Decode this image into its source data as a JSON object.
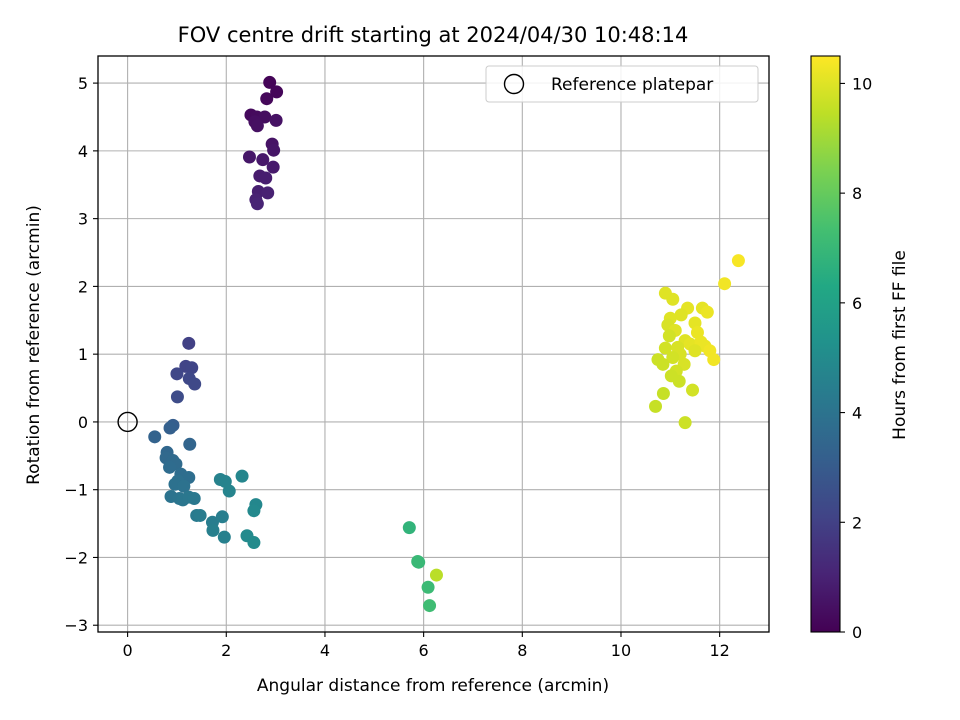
{
  "chart_data": {
    "type": "scatter",
    "title": "FOV centre drift starting at 2024/04/30 10:48:14",
    "xlabel": "Angular distance from reference (arcmin)",
    "ylabel": "Rotation from reference (arcmin)",
    "xlim": [
      -0.6,
      13.0
    ],
    "ylim": [
      -3.1,
      5.4
    ],
    "x_ticks": [
      "0",
      "2",
      "4",
      "6",
      "8",
      "10",
      "12"
    ],
    "y_ticks": [
      "−3",
      "−2",
      "−1",
      "0",
      "1",
      "2",
      "3",
      "4",
      "5"
    ],
    "grid": true,
    "legend": {
      "position": "upper-right",
      "entries": [
        "Reference platepar"
      ]
    },
    "reference_point": {
      "x": 0,
      "y": 0
    },
    "colorbar": {
      "label": "Hours from first FF file",
      "range": [
        0,
        10.5
      ],
      "ticks": [
        "0",
        "2",
        "4",
        "6",
        "8",
        "10"
      ],
      "colormap": "viridis"
    },
    "points": [
      {
        "x": 2.88,
        "y": 5.01,
        "c": 0.1
      },
      {
        "x": 3.02,
        "y": 4.87,
        "c": 0.15
      },
      {
        "x": 2.82,
        "y": 4.77,
        "c": 0.2
      },
      {
        "x": 2.5,
        "y": 4.53,
        "c": 0.25
      },
      {
        "x": 2.62,
        "y": 4.5,
        "c": 0.3
      },
      {
        "x": 2.78,
        "y": 4.5,
        "c": 0.35
      },
      {
        "x": 2.58,
        "y": 4.43,
        "c": 0.4
      },
      {
        "x": 2.63,
        "y": 4.37,
        "c": 0.45
      },
      {
        "x": 3.01,
        "y": 4.45,
        "c": 0.5
      },
      {
        "x": 2.93,
        "y": 4.1,
        "c": 0.55
      },
      {
        "x": 2.96,
        "y": 4.01,
        "c": 0.6
      },
      {
        "x": 2.47,
        "y": 3.91,
        "c": 0.65
      },
      {
        "x": 2.74,
        "y": 3.87,
        "c": 0.7
      },
      {
        "x": 2.95,
        "y": 3.76,
        "c": 0.75
      },
      {
        "x": 2.68,
        "y": 3.63,
        "c": 0.8
      },
      {
        "x": 2.8,
        "y": 3.6,
        "c": 0.85
      },
      {
        "x": 2.65,
        "y": 3.4,
        "c": 0.9
      },
      {
        "x": 2.84,
        "y": 3.38,
        "c": 0.95
      },
      {
        "x": 2.6,
        "y": 3.28,
        "c": 1.0
      },
      {
        "x": 2.63,
        "y": 3.22,
        "c": 1.05
      },
      {
        "x": 1.24,
        "y": 1.16,
        "c": 2.0
      },
      {
        "x": 1.18,
        "y": 0.82,
        "c": 2.1
      },
      {
        "x": 1.3,
        "y": 0.8,
        "c": 2.15
      },
      {
        "x": 1.0,
        "y": 0.71,
        "c": 2.2
      },
      {
        "x": 1.25,
        "y": 0.64,
        "c": 2.25
      },
      {
        "x": 1.36,
        "y": 0.56,
        "c": 2.3
      },
      {
        "x": 1.01,
        "y": 0.37,
        "c": 2.4
      },
      {
        "x": 0.92,
        "y": -0.05,
        "c": 3.1
      },
      {
        "x": 0.86,
        "y": -0.09,
        "c": 3.2
      },
      {
        "x": 0.55,
        "y": -0.22,
        "c": 3.3
      },
      {
        "x": 1.26,
        "y": -0.33,
        "c": 3.4
      },
      {
        "x": 0.8,
        "y": -0.45,
        "c": 3.5
      },
      {
        "x": 0.78,
        "y": -0.53,
        "c": 3.55
      },
      {
        "x": 0.92,
        "y": -0.57,
        "c": 3.6
      },
      {
        "x": 0.98,
        "y": -0.62,
        "c": 3.65
      },
      {
        "x": 0.85,
        "y": -0.67,
        "c": 3.7
      },
      {
        "x": 1.08,
        "y": -0.77,
        "c": 3.75
      },
      {
        "x": 1.24,
        "y": -0.82,
        "c": 3.8
      },
      {
        "x": 1.02,
        "y": -0.87,
        "c": 3.85
      },
      {
        "x": 0.96,
        "y": -0.92,
        "c": 3.9
      },
      {
        "x": 1.14,
        "y": -0.95,
        "c": 3.95
      },
      {
        "x": 0.88,
        "y": -1.1,
        "c": 4.0
      },
      {
        "x": 1.05,
        "y": -1.13,
        "c": 4.05
      },
      {
        "x": 1.12,
        "y": -1.15,
        "c": 4.1
      },
      {
        "x": 1.24,
        "y": -1.11,
        "c": 4.15
      },
      {
        "x": 1.35,
        "y": -1.13,
        "c": 4.2
      },
      {
        "x": 1.4,
        "y": -1.38,
        "c": 4.3
      },
      {
        "x": 1.47,
        "y": -1.38,
        "c": 4.35
      },
      {
        "x": 1.72,
        "y": -1.48,
        "c": 4.4
      },
      {
        "x": 1.92,
        "y": -1.4,
        "c": 4.45
      },
      {
        "x": 1.73,
        "y": -1.6,
        "c": 4.5
      },
      {
        "x": 1.96,
        "y": -1.7,
        "c": 4.55
      },
      {
        "x": 1.88,
        "y": -0.85,
        "c": 4.6
      },
      {
        "x": 1.98,
        "y": -0.88,
        "c": 4.65
      },
      {
        "x": 2.06,
        "y": -1.02,
        "c": 4.7
      },
      {
        "x": 2.32,
        "y": -0.8,
        "c": 4.8
      },
      {
        "x": 2.6,
        "y": -1.22,
        "c": 4.85
      },
      {
        "x": 2.56,
        "y": -1.31,
        "c": 4.9
      },
      {
        "x": 2.42,
        "y": -1.68,
        "c": 4.95
      },
      {
        "x": 2.56,
        "y": -1.78,
        "c": 5.0
      },
      {
        "x": 5.71,
        "y": -1.56,
        "c": 6.8
      },
      {
        "x": 5.9,
        "y": -2.07,
        "c": 7.0
      },
      {
        "x": 5.88,
        "y": -2.06,
        "c": 7.05
      },
      {
        "x": 6.09,
        "y": -2.44,
        "c": 7.1
      },
      {
        "x": 6.12,
        "y": -2.71,
        "c": 7.2
      },
      {
        "x": 6.26,
        "y": -2.26,
        "c": 9.4
      },
      {
        "x": 12.38,
        "y": 2.38,
        "c": 10.4
      },
      {
        "x": 12.1,
        "y": 2.04,
        "c": 10.3
      },
      {
        "x": 10.9,
        "y": 1.9,
        "c": 10.0
      },
      {
        "x": 11.05,
        "y": 1.81,
        "c": 10.0
      },
      {
        "x": 11.35,
        "y": 1.68,
        "c": 10.1
      },
      {
        "x": 11.65,
        "y": 1.68,
        "c": 10.1
      },
      {
        "x": 11.75,
        "y": 1.62,
        "c": 10.2
      },
      {
        "x": 11.22,
        "y": 1.58,
        "c": 10.0
      },
      {
        "x": 11.0,
        "y": 1.53,
        "c": 10.0
      },
      {
        "x": 10.95,
        "y": 1.43,
        "c": 9.9
      },
      {
        "x": 11.5,
        "y": 1.46,
        "c": 10.1
      },
      {
        "x": 11.1,
        "y": 1.35,
        "c": 10.0
      },
      {
        "x": 11.55,
        "y": 1.32,
        "c": 10.2
      },
      {
        "x": 10.98,
        "y": 1.27,
        "c": 9.8
      },
      {
        "x": 11.3,
        "y": 1.2,
        "c": 10.0
      },
      {
        "x": 11.4,
        "y": 1.15,
        "c": 10.1
      },
      {
        "x": 11.62,
        "y": 1.18,
        "c": 10.2
      },
      {
        "x": 11.7,
        "y": 1.12,
        "c": 10.2
      },
      {
        "x": 10.9,
        "y": 1.09,
        "c": 9.8
      },
      {
        "x": 11.15,
        "y": 1.1,
        "c": 9.9
      },
      {
        "x": 11.5,
        "y": 1.05,
        "c": 10.0
      },
      {
        "x": 11.8,
        "y": 1.05,
        "c": 10.3
      },
      {
        "x": 11.2,
        "y": 1.0,
        "c": 9.9
      },
      {
        "x": 10.75,
        "y": 0.92,
        "c": 9.7
      },
      {
        "x": 11.05,
        "y": 0.95,
        "c": 9.8
      },
      {
        "x": 11.88,
        "y": 0.92,
        "c": 10.3
      },
      {
        "x": 10.85,
        "y": 0.85,
        "c": 9.7
      },
      {
        "x": 11.28,
        "y": 0.85,
        "c": 9.9
      },
      {
        "x": 11.12,
        "y": 0.75,
        "c": 9.8
      },
      {
        "x": 11.02,
        "y": 0.68,
        "c": 9.7
      },
      {
        "x": 11.18,
        "y": 0.6,
        "c": 9.7
      },
      {
        "x": 11.45,
        "y": 0.47,
        "c": 9.8
      },
      {
        "x": 10.86,
        "y": 0.42,
        "c": 9.6
      },
      {
        "x": 10.7,
        "y": 0.23,
        "c": 9.6
      },
      {
        "x": 11.3,
        "y": -0.01,
        "c": 9.7
      }
    ]
  }
}
